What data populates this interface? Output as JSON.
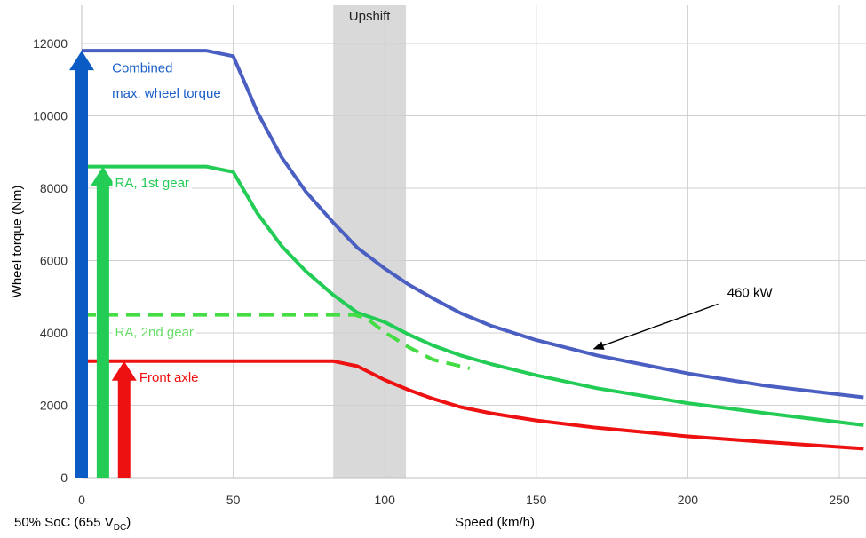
{
  "chart_data": {
    "type": "line",
    "title": "",
    "xlabel": "Speed (km/h)",
    "ylabel": "Wheel torque (Nm)",
    "xlim": [
      0,
      258
    ],
    "ylim": [
      0,
      12800
    ],
    "x_ticks": [
      0,
      50,
      100,
      150,
      200,
      250
    ],
    "y_ticks": [
      0,
      2000,
      4000,
      6000,
      8000,
      10000,
      12000
    ],
    "grid": true,
    "footnote": {
      "main": "50% SoC (655 V",
      "sub": "DC",
      "close": ")"
    },
    "shaded_region": {
      "label": "Upshift",
      "x": [
        83,
        107
      ],
      "color": "#d9d9d9"
    },
    "series": [
      {
        "name": "Combined max. wheel torque",
        "color": "#4a5fc1",
        "dashed": false,
        "points": [
          [
            0,
            11800
          ],
          [
            41,
            11800
          ],
          [
            50,
            11650
          ],
          [
            58,
            10100
          ],
          [
            66,
            8850
          ],
          [
            74,
            7900
          ],
          [
            83,
            7050
          ],
          [
            91,
            6350
          ],
          [
            100,
            5780
          ],
          [
            108,
            5330
          ],
          [
            116,
            4950
          ],
          [
            125,
            4550
          ],
          [
            135,
            4200
          ],
          [
            150,
            3800
          ],
          [
            170,
            3380
          ],
          [
            200,
            2880
          ],
          [
            225,
            2550
          ],
          [
            258,
            2220
          ]
        ]
      },
      {
        "name": "RA, 1st gear",
        "color": "#22cc55",
        "dashed": false,
        "points": [
          [
            0,
            8600
          ],
          [
            41,
            8600
          ],
          [
            50,
            8450
          ],
          [
            58,
            7300
          ],
          [
            66,
            6400
          ],
          [
            74,
            5700
          ],
          [
            83,
            5050
          ],
          [
            91,
            4560
          ],
          [
            100,
            4300
          ],
          [
            108,
            3950
          ],
          [
            116,
            3650
          ],
          [
            125,
            3380
          ],
          [
            135,
            3140
          ],
          [
            150,
            2830
          ],
          [
            170,
            2470
          ],
          [
            200,
            2060
          ],
          [
            225,
            1790
          ],
          [
            258,
            1450
          ]
        ]
      },
      {
        "name": "RA, 2nd gear",
        "color": "#44dd44",
        "dashed": true,
        "points": [
          [
            0,
            4500
          ],
          [
            90,
            4500
          ],
          [
            94,
            4400
          ],
          [
            100,
            4020
          ],
          [
            108,
            3600
          ],
          [
            116,
            3260
          ],
          [
            128,
            3020
          ]
        ]
      },
      {
        "name": "Front axle",
        "color": "#ee1111",
        "dashed": false,
        "points": [
          [
            0,
            3220
          ],
          [
            83,
            3220
          ],
          [
            91,
            3080
          ],
          [
            100,
            2700
          ],
          [
            108,
            2420
          ],
          [
            116,
            2180
          ],
          [
            125,
            1950
          ],
          [
            135,
            1780
          ],
          [
            150,
            1580
          ],
          [
            170,
            1380
          ],
          [
            200,
            1140
          ],
          [
            225,
            990
          ],
          [
            258,
            800
          ]
        ]
      }
    ],
    "arrows": [
      {
        "name": "combined-arrow",
        "x": 0,
        "y_top": 11800,
        "color": "#0a5cc4"
      },
      {
        "name": "ra-1st-gear-arrow",
        "x": 7,
        "y_top": 8600,
        "color": "#22cc55"
      },
      {
        "name": "front-axle-arrow",
        "x": 14,
        "y_top": 3220,
        "color": "#ee1111"
      }
    ],
    "annotations": [
      {
        "name": "label-combined-line1",
        "text": "Combined",
        "x": 10,
        "y": 11200,
        "color": "#1a5fc7"
      },
      {
        "name": "label-combined-line2",
        "text": "max. wheel torque",
        "x": 10,
        "y": 10500,
        "color": "#1a5fc7"
      },
      {
        "name": "label-ra-1st-gear",
        "text": "RA, 1st gear",
        "x": 11,
        "y": 8020,
        "color": "#22cc55"
      },
      {
        "name": "label-ra-2nd-gear",
        "text": "RA, 2nd gear",
        "x": 11,
        "y": 3900,
        "color": "#66dd66"
      },
      {
        "name": "label-front-axle",
        "text": "Front axle",
        "x": 19,
        "y": 2650,
        "color": "#ee1111"
      }
    ],
    "power_label": {
      "text": "460 kW",
      "x": 213,
      "y": 5000,
      "arrow_from": [
        210,
        4800
      ],
      "arrow_to": [
        169,
        3560
      ]
    }
  }
}
